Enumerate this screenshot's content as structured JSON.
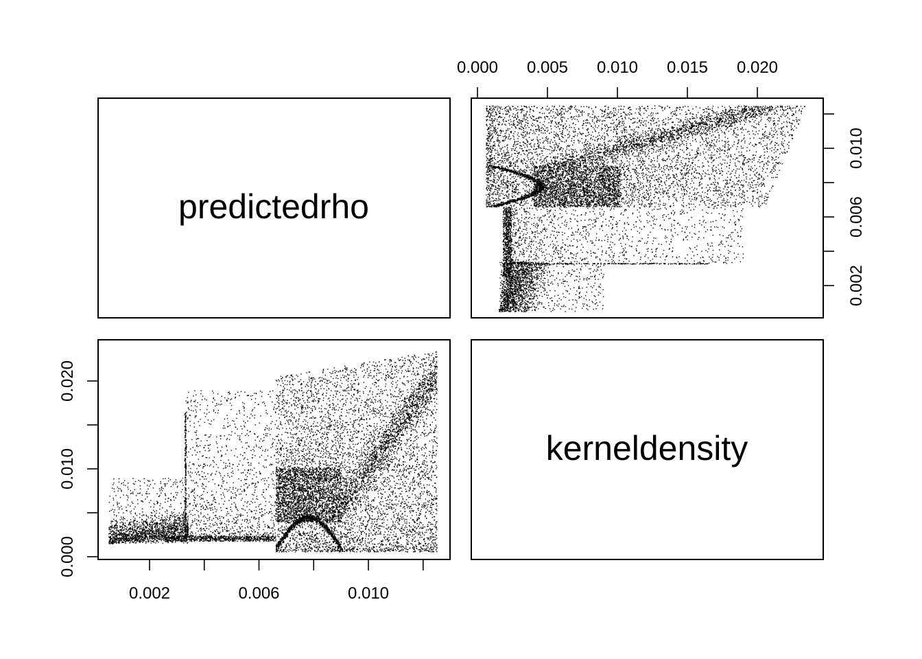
{
  "chart_data": {
    "type": "scatter",
    "variables": [
      "predictedrho",
      "kerneldensity"
    ],
    "panels": [
      {
        "panel": "top-right",
        "x_variable": "kerneldensity",
        "y_variable": "predictedrho",
        "x_ticks": [
          "0.000",
          "0.005",
          "0.010",
          "0.015",
          "0.020"
        ],
        "y_ticks": [
          "0.002",
          "0.006",
          "0.010"
        ],
        "x_axis_side": "top",
        "y_axis_side": "right"
      },
      {
        "panel": "bottom-left",
        "x_variable": "predictedrho",
        "y_variable": "kerneldensity",
        "x_ticks": [
          "0.002",
          "0.006",
          "0.010"
        ],
        "y_ticks": [
          "0.000",
          "0.010",
          "0.020"
        ],
        "x_axis_side": "bottom",
        "y_axis_side": "left"
      }
    ],
    "ranges": {
      "predictedrho": [
        0.0005,
        0.0125
      ],
      "kerneldensity": [
        0.0003,
        0.0235
      ]
    },
    "point_style": "small black dots",
    "grid": false,
    "legend": "none"
  }
}
